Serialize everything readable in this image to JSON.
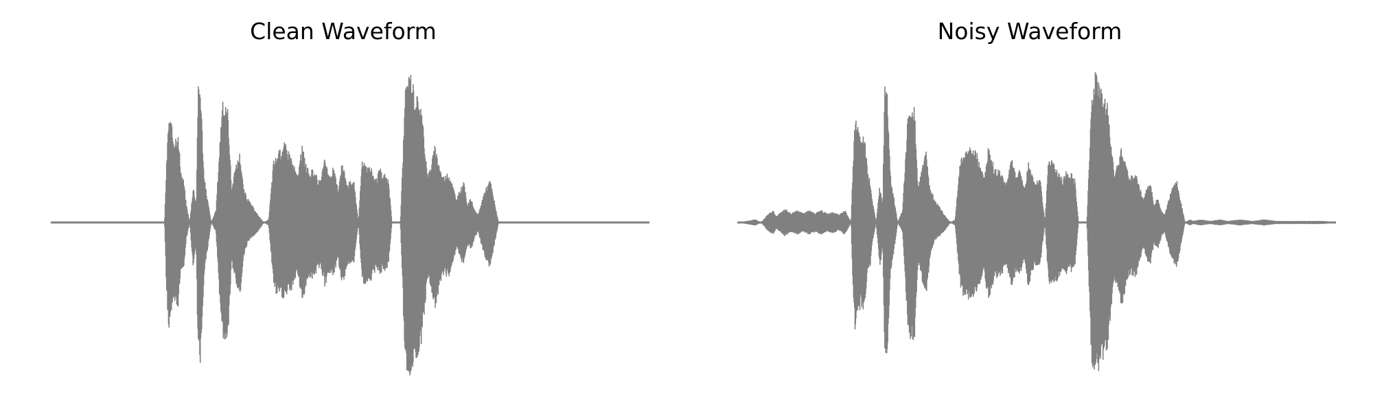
{
  "colors": {
    "waveform": "#808080",
    "background": "#ffffff",
    "text": "#000000"
  },
  "chart_data": [
    {
      "type": "area",
      "title": "Clean Waveform",
      "xlabel": "",
      "ylabel": "",
      "axes": "off",
      "grid": false,
      "xlim": [
        0,
        1
      ],
      "ylim": [
        -1,
        1
      ],
      "series": [
        {
          "envelope_x": [
            0.0,
            0.19,
            0.193,
            0.197,
            0.2,
            0.206,
            0.212,
            0.218,
            0.222,
            0.226,
            0.232,
            0.238,
            0.243,
            0.246,
            0.25,
            0.256,
            0.262,
            0.268,
            0.276,
            0.286,
            0.296,
            0.302,
            0.308,
            0.316,
            0.322,
            0.33,
            0.346,
            0.356,
            0.364,
            0.372,
            0.378,
            0.39,
            0.4,
            0.412,
            0.42,
            0.43,
            0.44,
            0.45,
            0.458,
            0.466,
            0.472,
            0.48,
            0.486,
            0.496,
            0.506,
            0.514,
            0.52,
            0.534,
            0.544,
            0.55,
            0.554,
            0.558,
            0.564,
            0.57,
            0.584,
            0.592,
            0.6,
            0.608,
            0.618,
            0.63,
            0.642,
            0.654,
            0.666,
            0.678,
            0.684,
            0.69,
            0.696,
            0.702,
            0.708,
            0.714,
            0.724,
            0.734,
            0.748,
            0.756,
            0.762,
            0.774,
            0.79,
            0.806,
            0.82,
            0.9,
            1.0
          ],
          "envelope_top": [
            0.0,
            0.0,
            0.35,
            0.7,
            0.66,
            0.55,
            0.6,
            0.32,
            0.28,
            0.13,
            0.0,
            0.24,
            0.12,
            0.88,
            0.9,
            0.3,
            0.15,
            0.0,
            0.08,
            0.78,
            0.74,
            0.22,
            0.35,
            0.46,
            0.22,
            0.15,
            0.05,
            0.0,
            0.02,
            0.4,
            0.44,
            0.52,
            0.45,
            0.3,
            0.5,
            0.34,
            0.34,
            0.26,
            0.42,
            0.3,
            0.36,
            0.22,
            0.4,
            0.26,
            0.28,
            0.0,
            0.42,
            0.36,
            0.28,
            0.36,
            0.3,
            0.32,
            0.28,
            0.0,
            0.0,
            0.84,
            1.0,
            0.85,
            0.78,
            0.3,
            0.5,
            0.3,
            0.32,
            0.15,
            0.22,
            0.26,
            0.12,
            0.16,
            0.08,
            0.05,
            0.2,
            0.28,
            0.0,
            0.0,
            0.0,
            0.0,
            0.0,
            0.0,
            0.0,
            0.0,
            0.0
          ],
          "envelope_bottom": [
            0.0,
            0.0,
            0.4,
            0.72,
            0.6,
            0.55,
            0.58,
            0.3,
            0.3,
            0.12,
            0.0,
            0.3,
            0.15,
            0.9,
            0.92,
            0.34,
            0.18,
            0.0,
            0.06,
            0.75,
            0.76,
            0.25,
            0.38,
            0.48,
            0.22,
            0.12,
            0.06,
            0.0,
            0.02,
            0.4,
            0.48,
            0.5,
            0.46,
            0.32,
            0.52,
            0.36,
            0.36,
            0.28,
            0.42,
            0.32,
            0.34,
            0.24,
            0.42,
            0.28,
            0.28,
            0.0,
            0.4,
            0.38,
            0.3,
            0.36,
            0.3,
            0.32,
            0.28,
            0.0,
            0.0,
            0.92,
            1.0,
            0.9,
            0.82,
            0.36,
            0.55,
            0.34,
            0.35,
            0.16,
            0.24,
            0.28,
            0.14,
            0.18,
            0.1,
            0.06,
            0.22,
            0.3,
            0.0,
            0.0,
            0.0,
            0.0,
            0.0,
            0.0,
            0.0,
            0.0,
            0.0
          ]
        }
      ]
    },
    {
      "type": "area",
      "title": "Noisy Waveform",
      "xlabel": "",
      "ylabel": "",
      "axes": "off",
      "grid": false,
      "xlim": [
        0,
        1
      ],
      "ylim": [
        -1,
        1
      ],
      "series": [
        {
          "envelope_x": [
            0.0,
            0.03,
            0.04,
            0.05,
            0.06,
            0.065,
            0.08,
            0.09,
            0.1,
            0.11,
            0.12,
            0.13,
            0.14,
            0.15,
            0.16,
            0.17,
            0.18,
            0.19,
            0.193,
            0.197,
            0.2,
            0.206,
            0.212,
            0.218,
            0.222,
            0.226,
            0.232,
            0.238,
            0.243,
            0.246,
            0.25,
            0.256,
            0.262,
            0.268,
            0.276,
            0.286,
            0.296,
            0.302,
            0.308,
            0.316,
            0.322,
            0.33,
            0.346,
            0.356,
            0.364,
            0.372,
            0.378,
            0.39,
            0.4,
            0.412,
            0.42,
            0.43,
            0.44,
            0.45,
            0.458,
            0.466,
            0.472,
            0.48,
            0.486,
            0.496,
            0.506,
            0.514,
            0.52,
            0.534,
            0.544,
            0.55,
            0.554,
            0.558,
            0.564,
            0.57,
            0.584,
            0.592,
            0.6,
            0.608,
            0.618,
            0.63,
            0.642,
            0.654,
            0.666,
            0.678,
            0.684,
            0.69,
            0.696,
            0.702,
            0.708,
            0.714,
            0.724,
            0.734,
            0.748,
            0.756,
            0.762,
            0.774,
            0.79,
            0.806,
            0.82,
            0.84,
            0.86,
            0.88,
            0.9,
            0.92,
            0.94,
            0.96,
            0.98,
            1.0
          ],
          "envelope_top": [
            0.0,
            0.02,
            0.0,
            0.05,
            0.08,
            0.04,
            0.09,
            0.06,
            0.08,
            0.06,
            0.08,
            0.06,
            0.08,
            0.06,
            0.07,
            0.05,
            0.08,
            0.0,
            0.35,
            0.72,
            0.66,
            0.55,
            0.6,
            0.32,
            0.28,
            0.13,
            0.0,
            0.24,
            0.12,
            0.88,
            0.9,
            0.3,
            0.15,
            0.0,
            0.08,
            0.78,
            0.74,
            0.22,
            0.35,
            0.46,
            0.22,
            0.15,
            0.05,
            0.0,
            0.02,
            0.4,
            0.44,
            0.52,
            0.45,
            0.3,
            0.5,
            0.34,
            0.34,
            0.26,
            0.42,
            0.3,
            0.36,
            0.22,
            0.4,
            0.26,
            0.28,
            0.0,
            0.42,
            0.36,
            0.28,
            0.36,
            0.3,
            0.32,
            0.28,
            0.0,
            0.0,
            0.84,
            1.0,
            0.85,
            0.78,
            0.3,
            0.5,
            0.3,
            0.32,
            0.15,
            0.22,
            0.26,
            0.12,
            0.16,
            0.08,
            0.05,
            0.2,
            0.28,
            0.0,
            0.02,
            0.01,
            0.02,
            0.01,
            0.02,
            0.01,
            0.02,
            0.01,
            0.02,
            0.01,
            0.01,
            0.01,
            0.01,
            0.01,
            0.0
          ],
          "envelope_bottom": [
            0.0,
            0.02,
            0.0,
            0.05,
            0.08,
            0.04,
            0.09,
            0.06,
            0.08,
            0.06,
            0.08,
            0.06,
            0.08,
            0.06,
            0.07,
            0.05,
            0.08,
            0.0,
            0.4,
            0.72,
            0.6,
            0.55,
            0.58,
            0.3,
            0.3,
            0.12,
            0.0,
            0.3,
            0.15,
            0.9,
            0.92,
            0.34,
            0.18,
            0.0,
            0.06,
            0.75,
            0.76,
            0.25,
            0.38,
            0.48,
            0.22,
            0.12,
            0.06,
            0.0,
            0.02,
            0.4,
            0.48,
            0.5,
            0.46,
            0.32,
            0.52,
            0.36,
            0.36,
            0.28,
            0.42,
            0.32,
            0.34,
            0.24,
            0.42,
            0.28,
            0.28,
            0.0,
            0.4,
            0.38,
            0.3,
            0.36,
            0.3,
            0.32,
            0.28,
            0.0,
            0.0,
            0.92,
            1.0,
            0.9,
            0.82,
            0.36,
            0.55,
            0.34,
            0.35,
            0.16,
            0.24,
            0.28,
            0.14,
            0.18,
            0.1,
            0.06,
            0.22,
            0.3,
            0.0,
            0.02,
            0.01,
            0.02,
            0.01,
            0.02,
            0.01,
            0.02,
            0.01,
            0.02,
            0.01,
            0.01,
            0.01,
            0.01,
            0.01,
            0.0
          ]
        }
      ]
    }
  ]
}
